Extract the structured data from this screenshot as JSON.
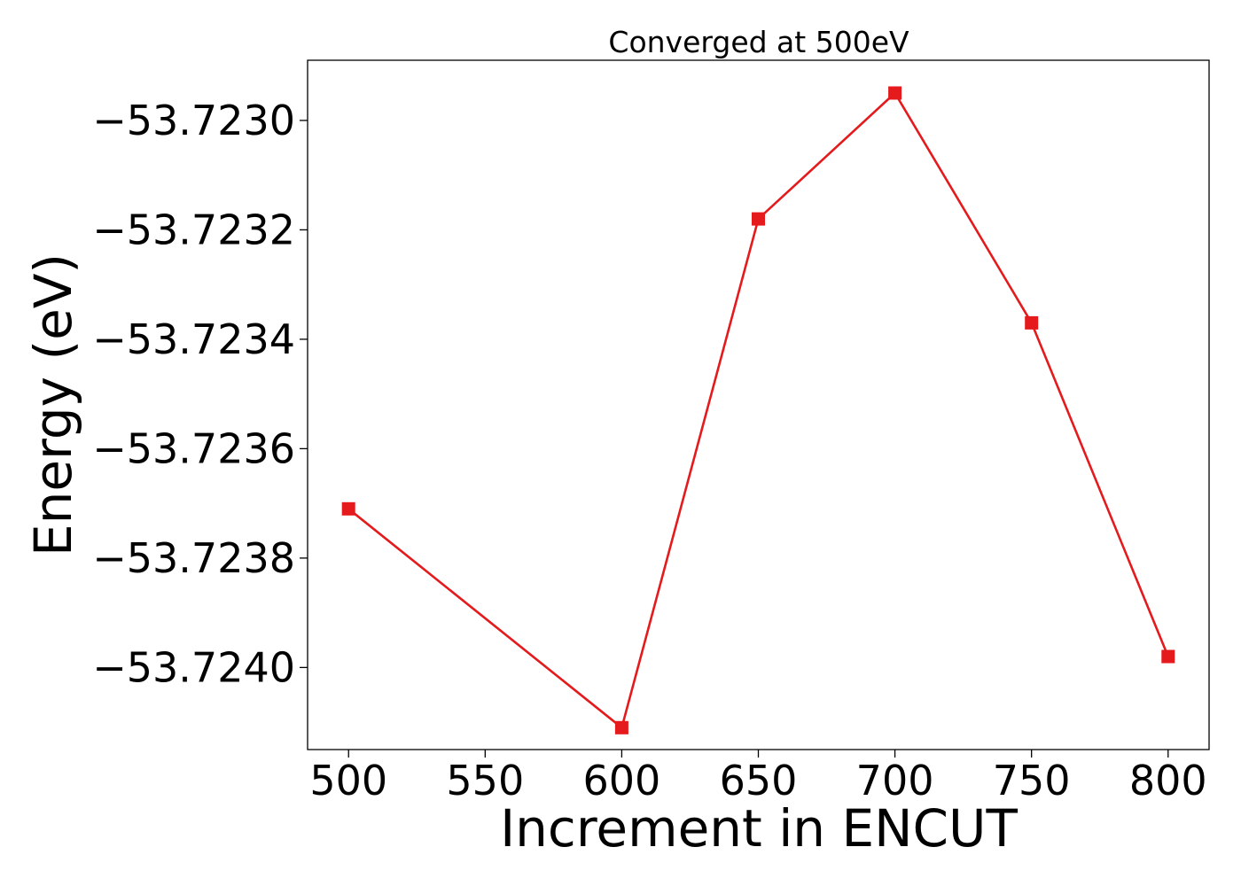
{
  "chart_data": {
    "type": "line",
    "title": "Converged at 500eV",
    "xlabel": "Increment in ENCUT",
    "ylabel": "Energy (eV)",
    "x": [
      500,
      600,
      650,
      700,
      750,
      800
    ],
    "series": [
      {
        "values": [
          -53.72371,
          -53.72411,
          -53.72318,
          -53.72295,
          -53.72337,
          -53.72398
        ],
        "color": "#e41a1c",
        "marker": "square"
      }
    ],
    "xlim": [
      485,
      815
    ],
    "ylim": [
      -53.72415,
      -53.72289
    ],
    "xticks": [
      500,
      550,
      600,
      650,
      700,
      750,
      800
    ],
    "xtick_labels": [
      "500",
      "550",
      "600",
      "650",
      "700",
      "750",
      "800"
    ],
    "yticks": [
      -53.723,
      -53.7232,
      -53.7234,
      -53.7236,
      -53.7238,
      -53.724
    ],
    "ytick_labels": [
      "−53.7230",
      "−53.7232",
      "−53.7234",
      "−53.7236",
      "−53.7238",
      "−53.7240"
    ],
    "grid": false,
    "legend": "none"
  }
}
